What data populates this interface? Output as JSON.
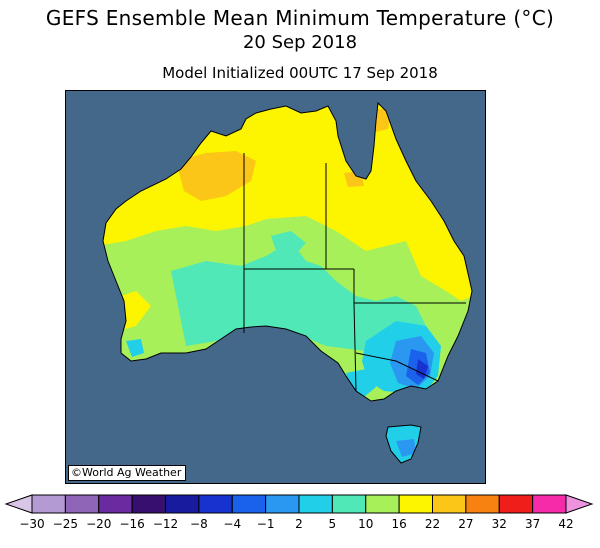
{
  "title": "GEFS Ensemble Mean Minimum Temperature (°C)",
  "date": "20 Sep 2018",
  "init": "Model Initialized 00UTC 17 Sep 2018",
  "credit": "©World Ag Weather",
  "ocean_color": "#44688a",
  "colorbar": {
    "ticks": [
      "-30",
      "-25",
      "-20",
      "-16",
      "-12",
      "-8",
      "-4",
      "-1",
      "2",
      "5",
      "10",
      "16",
      "22",
      "27",
      "32",
      "37",
      "42"
    ],
    "colors": [
      "#d9c6e6",
      "#b49ad2",
      "#8f65b8",
      "#6a2aa0",
      "#37106e",
      "#191b9f",
      "#1732cf",
      "#1a62ec",
      "#2a98f0",
      "#22cfe8",
      "#50e8b6",
      "#a7f05a",
      "#fdf400",
      "#fbc617",
      "#f78212",
      "#ef1e1a",
      "#f52ba9",
      "#ee94de"
    ]
  }
}
